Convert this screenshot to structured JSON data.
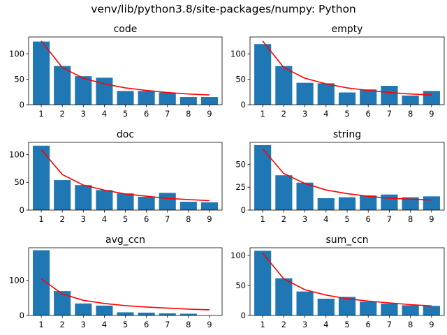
{
  "figure": {
    "suptitle": "venv/lib/python3.8/site-packages/numpy: Python",
    "bar_color": "#1f77b4",
    "line_color": "#ff0000"
  },
  "chart_data": [
    {
      "type": "bar",
      "title": "code",
      "categories": [
        "1",
        "2",
        "3",
        "4",
        "5",
        "6",
        "7",
        "8",
        "9"
      ],
      "series": [
        {
          "values": [
            124,
            76,
            56,
            53,
            27,
            27,
            24,
            15,
            15
          ]
        },
        {
          "type": "line",
          "values": [
            125,
            73,
            52,
            41,
            33,
            28,
            24,
            21,
            19
          ]
        }
      ],
      "yticks": [
        0,
        50,
        100
      ],
      "ylim": [
        0,
        133
      ]
    },
    {
      "type": "bar",
      "title": "empty",
      "categories": [
        "1",
        "2",
        "3",
        "4",
        "5",
        "6",
        "7",
        "8",
        "9"
      ],
      "series": [
        {
          "values": [
            119,
            76,
            43,
            42,
            24,
            30,
            37,
            18,
            27
          ]
        },
        {
          "type": "line",
          "values": [
            125,
            73,
            52,
            41,
            33,
            28,
            24,
            21,
            19
          ]
        }
      ],
      "yticks": [
        0,
        50,
        100
      ],
      "ylim": [
        0,
        133
      ]
    },
    {
      "type": "bar",
      "title": "doc",
      "categories": [
        "1",
        "2",
        "3",
        "4",
        "5",
        "6",
        "7",
        "8",
        "9"
      ],
      "series": [
        {
          "values": [
            116,
            54,
            45,
            36,
            30,
            24,
            31,
            15,
            14
          ]
        },
        {
          "type": "line",
          "values": [
            109,
            64,
            45,
            36,
            29,
            25,
            21,
            19,
            17
          ]
        }
      ],
      "yticks": [
        0,
        50,
        100
      ],
      "ylim": [
        0,
        122
      ]
    },
    {
      "type": "bar",
      "title": "string",
      "categories": [
        "1",
        "2",
        "3",
        "4",
        "5",
        "6",
        "7",
        "8",
        "9"
      ],
      "series": [
        {
          "values": [
            71,
            38,
            30,
            13,
            14,
            16,
            17,
            14,
            15
          ]
        },
        {
          "type": "line",
          "values": [
            67,
            40,
            29,
            22,
            18,
            15,
            13,
            12,
            11
          ]
        }
      ],
      "yticks": [
        0,
        25,
        50
      ],
      "ylim": [
        0,
        74
      ]
    },
    {
      "type": "bar",
      "title": "avg_ccn",
      "categories": [
        "1",
        "2",
        "3",
        "4",
        "5",
        "6",
        "7",
        "8",
        "9"
      ],
      "series": [
        {
          "values": [
            185,
            69,
            34,
            28,
            9,
            8,
            6,
            5,
            0
          ]
        },
        {
          "type": "line",
          "values": [
            104,
            61,
            43,
            34,
            28,
            24,
            21,
            18,
            16
          ]
        }
      ],
      "yticks": [
        0,
        100
      ],
      "ylim": [
        0,
        192
      ]
    },
    {
      "type": "bar",
      "title": "sum_ccn",
      "categories": [
        "1",
        "2",
        "3",
        "4",
        "5",
        "6",
        "7",
        "8",
        "9"
      ],
      "series": [
        {
          "values": [
            108,
            62,
            40,
            28,
            31,
            23,
            20,
            17,
            16
          ]
        },
        {
          "type": "line",
          "values": [
            104,
            61,
            43,
            34,
            28,
            24,
            21,
            18,
            16
          ]
        }
      ],
      "yticks": [
        0,
        50,
        100
      ],
      "ylim": [
        0,
        113
      ]
    }
  ]
}
